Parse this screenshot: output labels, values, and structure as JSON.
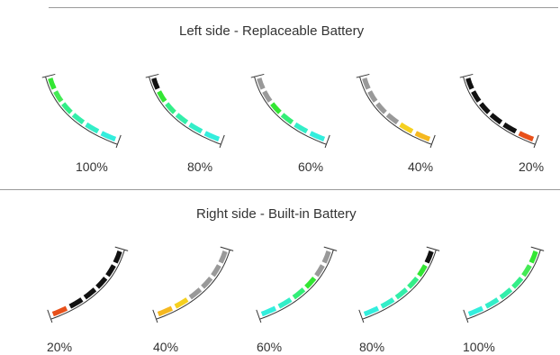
{
  "left_section": {
    "title": "Left side - Replaceable Battery",
    "gauges": [
      {
        "label": "100%",
        "segments": [
          "#33e633",
          "#44ea55",
          "#33ee88",
          "#33eeaa",
          "#33eec8",
          "#33eedd"
        ]
      },
      {
        "label": "80%",
        "segments": [
          "#111111",
          "#33e633",
          "#33ee88",
          "#33eeaa",
          "#33eec8",
          "#33eedd"
        ]
      },
      {
        "label": "60%",
        "segments": [
          "#999999",
          "#999999",
          "#33e633",
          "#33ee77",
          "#33eec8",
          "#33eedd"
        ]
      },
      {
        "label": "40%",
        "segments": [
          "#999999",
          "#999999",
          "#999999",
          "#999999",
          "#f5d020",
          "#f5b820"
        ]
      },
      {
        "label": "20%",
        "segments": [
          "#111111",
          "#111111",
          "#111111",
          "#111111",
          "#111111",
          "#e8501a"
        ]
      }
    ]
  },
  "right_section": {
    "title": "Right side - Built-in Battery",
    "gauges": [
      {
        "label": "20%",
        "segments": [
          "#e8501a",
          "#111111",
          "#111111",
          "#111111",
          "#111111",
          "#111111"
        ]
      },
      {
        "label": "40%",
        "segments": [
          "#f5b820",
          "#f5d020",
          "#999999",
          "#999999",
          "#999999",
          "#999999"
        ]
      },
      {
        "label": "60%",
        "segments": [
          "#33eedd",
          "#33eec8",
          "#33ee77",
          "#33e633",
          "#999999",
          "#999999"
        ]
      },
      {
        "label": "80%",
        "segments": [
          "#33eedd",
          "#33eec8",
          "#33eeaa",
          "#33ee88",
          "#33e633",
          "#111111"
        ]
      },
      {
        "label": "100%",
        "segments": [
          "#33eedd",
          "#33eec8",
          "#33eeaa",
          "#33ee88",
          "#44ea55",
          "#33e633"
        ]
      }
    ]
  }
}
